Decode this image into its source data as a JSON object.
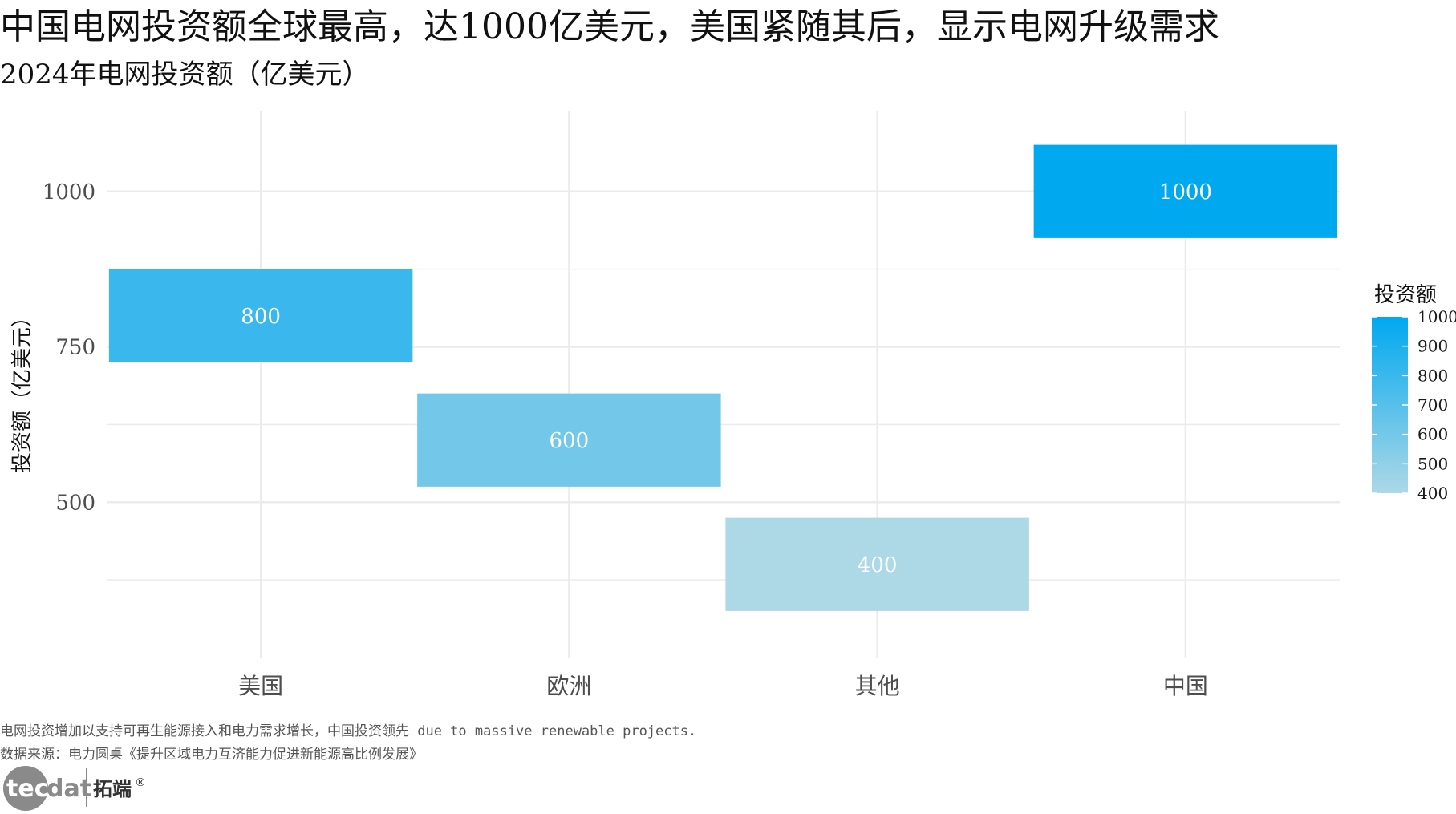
{
  "chart_data": {
    "type": "bar",
    "subtype": "floating-tile",
    "title": "中国电网投资额全球最高，达1000亿美元，美国紧随其后，显示电网升级需求",
    "subtitle": "2024年电网投资额（亿美元）",
    "xlabel": "",
    "ylabel": "投资额（亿美元）",
    "categories": [
      "美国",
      "欧洲",
      "其他",
      "中国"
    ],
    "values": [
      800,
      600,
      400,
      1000
    ],
    "data_labels": [
      "800",
      "600",
      "400",
      "1000"
    ],
    "ylim": [
      250,
      1130
    ],
    "y_ticks": [
      500,
      750,
      1000
    ],
    "y_tick_labels": [
      "500",
      "750",
      "1000"
    ],
    "grid": true,
    "legend": {
      "title": "投资额",
      "placement": "right",
      "type": "colorbar",
      "range": [
        400,
        1000
      ],
      "ticks": [
        400,
        500,
        600,
        700,
        800,
        900,
        1000
      ],
      "tick_labels": [
        "400",
        "500",
        "600",
        "700",
        "800",
        "900",
        "1000"
      ],
      "color_low": "#add8e6",
      "color_high": "#00a8f0"
    },
    "captions": [
      "电网投资增加以支持可再生能源接入和电力需求增长，中国投资领先 due to massive renewable projects.",
      "数据来源：电力圆桌《提升区域电力互济能力促进新能源高比例发展》"
    ]
  },
  "logo": {
    "text_a": "tec",
    "text_b": "dat",
    "text_cn": "拓端",
    "mark": "®"
  },
  "colors": {
    "grid": "#ebebeb",
    "tick_text": "#4d4d4d",
    "bar_low": "#add8e6",
    "bar_high": "#00a8f0"
  }
}
